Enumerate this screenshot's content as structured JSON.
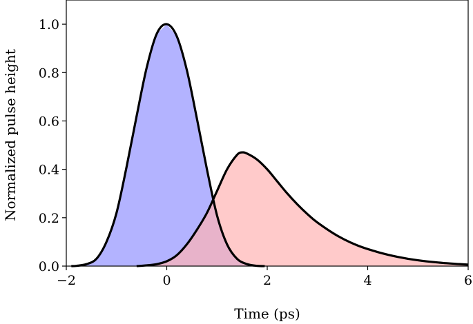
{
  "chart_data": {
    "type": "area",
    "title": "",
    "xlabel": "Time (ps)",
    "ylabel": "Normalized pulse height",
    "xlim": [
      -2,
      6
    ],
    "ylim": [
      0,
      1.1
    ],
    "grid": false,
    "x_ticks": [
      -2,
      0,
      2,
      4,
      6
    ],
    "x_tick_labels": [
      "−2",
      "0",
      "2",
      "4",
      "6"
    ],
    "y_ticks": [
      0.0,
      0.2,
      0.4,
      0.6,
      0.8,
      1.0
    ],
    "y_tick_labels": [
      "0.0",
      "0.2",
      "0.4",
      "0.6",
      "0.8",
      "1.0"
    ],
    "series": [
      {
        "fill": "#b3b3ff",
        "line": "#000000",
        "x": [
          -1.9,
          -1.8,
          -1.6,
          -1.4,
          -1.2,
          -1.0,
          -0.8,
          -0.6,
          -0.4,
          -0.2,
          0.0,
          0.2,
          0.4,
          0.6,
          0.8,
          1.0,
          1.2,
          1.4,
          1.6,
          1.8,
          1.95
        ],
        "y": [
          0.0,
          0.001,
          0.008,
          0.03,
          0.1,
          0.22,
          0.41,
          0.62,
          0.82,
          0.96,
          1.0,
          0.95,
          0.81,
          0.61,
          0.4,
          0.21,
          0.09,
          0.03,
          0.008,
          0.001,
          0.0
        ]
      },
      {
        "fill": "#ffb3b3",
        "line": "#000000",
        "x": [
          -0.6,
          -0.4,
          -0.2,
          0.0,
          0.2,
          0.4,
          0.6,
          0.8,
          1.0,
          1.2,
          1.4,
          1.5,
          1.6,
          1.8,
          2.0,
          2.2,
          2.4,
          2.6,
          2.8,
          3.0,
          3.4,
          3.8,
          4.2,
          4.6,
          5.0,
          5.5,
          6.0
        ],
        "y": [
          0.0,
          0.003,
          0.008,
          0.02,
          0.045,
          0.09,
          0.15,
          0.22,
          0.31,
          0.4,
          0.46,
          0.47,
          0.465,
          0.44,
          0.4,
          0.35,
          0.3,
          0.255,
          0.215,
          0.18,
          0.125,
          0.085,
          0.058,
          0.038,
          0.024,
          0.013,
          0.006
        ]
      }
    ]
  }
}
